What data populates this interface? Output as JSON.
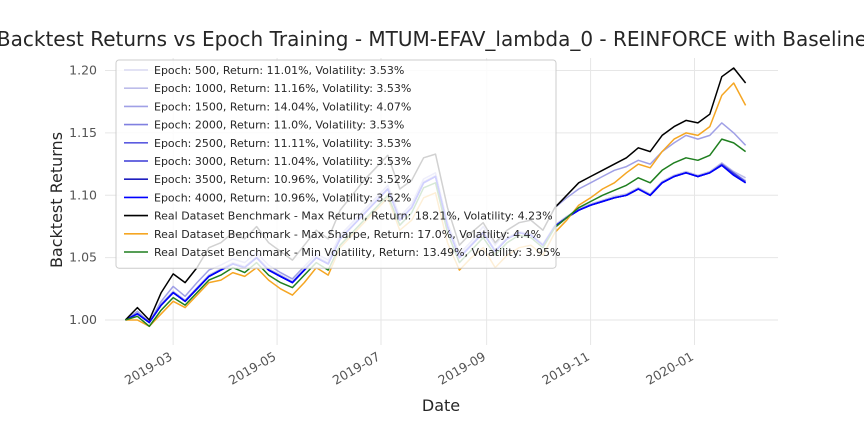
{
  "chart_data": {
    "type": "line",
    "title": "Backtest Returns vs Epoch Training - MTUM-EFAV_lambda_0 - REINFORCE with Baseline",
    "xlabel": "Date",
    "ylabel": "Backtest Returns",
    "xlim": [
      "2019-01-20",
      "2020-02-19"
    ],
    "ylim": [
      0.98,
      1.21
    ],
    "x_ticks": [
      "2019-03",
      "2019-05",
      "2019-07",
      "2019-09",
      "2019-11",
      "2020-01"
    ],
    "y_ticks": [
      1.0,
      1.05,
      1.1,
      1.15,
      1.2
    ],
    "grid": true,
    "legend_position": "top-left",
    "x": [
      "2019-02-01",
      "2019-02-08",
      "2019-02-15",
      "2019-02-22",
      "2019-03-01",
      "2019-03-08",
      "2019-03-15",
      "2019-03-22",
      "2019-03-29",
      "2019-04-05",
      "2019-04-12",
      "2019-04-19",
      "2019-04-26",
      "2019-05-03",
      "2019-05-10",
      "2019-05-17",
      "2019-05-24",
      "2019-05-31",
      "2019-06-07",
      "2019-06-14",
      "2019-06-21",
      "2019-06-28",
      "2019-07-05",
      "2019-07-12",
      "2019-07-19",
      "2019-07-26",
      "2019-08-02",
      "2019-08-09",
      "2019-08-16",
      "2019-08-23",
      "2019-08-30",
      "2019-09-06",
      "2019-09-13",
      "2019-09-20",
      "2019-09-27",
      "2019-10-04",
      "2019-10-11",
      "2019-10-18",
      "2019-10-25",
      "2019-11-01",
      "2019-11-08",
      "2019-11-15",
      "2019-11-22",
      "2019-11-29",
      "2019-12-06",
      "2019-12-13",
      "2019-12-20",
      "2019-12-27",
      "2020-01-03",
      "2020-01-10",
      "2020-01-17",
      "2020-01-24",
      "2020-01-31"
    ],
    "series": [
      {
        "name": "Epoch: 500, Return: 11.01%, Volatility: 3.53%",
        "color": "#d9d9f2",
        "values": [
          1.0,
          1.005,
          0.998,
          1.012,
          1.022,
          1.015,
          1.025,
          1.035,
          1.04,
          1.045,
          1.042,
          1.05,
          1.04,
          1.035,
          1.03,
          1.04,
          1.05,
          1.045,
          1.065,
          1.075,
          1.085,
          1.095,
          1.105,
          1.08,
          1.09,
          1.11,
          1.115,
          1.075,
          1.05,
          1.06,
          1.07,
          1.055,
          1.065,
          1.07,
          1.068,
          1.06,
          1.075,
          1.082,
          1.088,
          1.092,
          1.095,
          1.098,
          1.1,
          1.105,
          1.1,
          1.11,
          1.115,
          1.118,
          1.115,
          1.118,
          1.125,
          1.118,
          1.112
        ]
      },
      {
        "name": "Epoch: 1000, Return: 11.16%, Volatility: 3.53%",
        "color": "#bdbdea",
        "values": [
          1.0,
          1.006,
          0.999,
          1.013,
          1.023,
          1.016,
          1.026,
          1.036,
          1.041,
          1.046,
          1.043,
          1.051,
          1.041,
          1.036,
          1.031,
          1.041,
          1.051,
          1.046,
          1.066,
          1.076,
          1.086,
          1.096,
          1.106,
          1.081,
          1.091,
          1.111,
          1.116,
          1.076,
          1.051,
          1.061,
          1.071,
          1.056,
          1.066,
          1.071,
          1.069,
          1.061,
          1.076,
          1.083,
          1.089,
          1.093,
          1.096,
          1.099,
          1.101,
          1.106,
          1.101,
          1.111,
          1.116,
          1.119,
          1.116,
          1.119,
          1.126,
          1.119,
          1.114
        ]
      },
      {
        "name": "Epoch: 1500, Return: 14.04%, Volatility: 4.07%",
        "color": "#a0a0e6",
        "values": [
          1.0,
          1.007,
          0.998,
          1.015,
          1.027,
          1.019,
          1.03,
          1.04,
          1.044,
          1.049,
          1.046,
          1.054,
          1.044,
          1.038,
          1.033,
          1.043,
          1.053,
          1.048,
          1.068,
          1.078,
          1.088,
          1.098,
          1.108,
          1.083,
          1.093,
          1.113,
          1.118,
          1.078,
          1.053,
          1.063,
          1.075,
          1.06,
          1.072,
          1.078,
          1.08,
          1.072,
          1.09,
          1.098,
          1.105,
          1.11,
          1.115,
          1.12,
          1.123,
          1.128,
          1.125,
          1.135,
          1.142,
          1.148,
          1.145,
          1.148,
          1.158,
          1.15,
          1.14
        ]
      },
      {
        "name": "Epoch: 2000, Return: 11.0%, Volatility: 3.53%",
        "color": "#8080e0",
        "values": [
          1.0,
          1.005,
          0.998,
          1.012,
          1.022,
          1.015,
          1.025,
          1.035,
          1.04,
          1.045,
          1.042,
          1.05,
          1.04,
          1.035,
          1.03,
          1.04,
          1.05,
          1.045,
          1.065,
          1.075,
          1.085,
          1.095,
          1.105,
          1.08,
          1.09,
          1.11,
          1.115,
          1.075,
          1.05,
          1.06,
          1.07,
          1.055,
          1.065,
          1.07,
          1.068,
          1.06,
          1.075,
          1.082,
          1.088,
          1.092,
          1.095,
          1.098,
          1.1,
          1.105,
          1.1,
          1.11,
          1.115,
          1.118,
          1.115,
          1.118,
          1.124,
          1.117,
          1.11
        ]
      },
      {
        "name": "Epoch: 2500, Return: 11.11%, Volatility: 3.53%",
        "color": "#5c5ce0",
        "values": [
          1.0,
          1.005,
          0.998,
          1.012,
          1.022,
          1.015,
          1.025,
          1.035,
          1.04,
          1.045,
          1.042,
          1.05,
          1.04,
          1.035,
          1.03,
          1.04,
          1.05,
          1.045,
          1.065,
          1.075,
          1.085,
          1.095,
          1.105,
          1.08,
          1.09,
          1.11,
          1.115,
          1.075,
          1.05,
          1.06,
          1.07,
          1.055,
          1.065,
          1.07,
          1.068,
          1.06,
          1.075,
          1.082,
          1.088,
          1.092,
          1.095,
          1.098,
          1.1,
          1.105,
          1.1,
          1.11,
          1.115,
          1.118,
          1.115,
          1.118,
          1.125,
          1.118,
          1.111
        ]
      },
      {
        "name": "Epoch: 3000, Return: 11.04%, Volatility: 3.53%",
        "color": "#3a3ad6",
        "values": [
          1.0,
          1.005,
          0.998,
          1.012,
          1.022,
          1.015,
          1.025,
          1.035,
          1.04,
          1.045,
          1.042,
          1.05,
          1.04,
          1.035,
          1.03,
          1.04,
          1.05,
          1.045,
          1.065,
          1.075,
          1.085,
          1.095,
          1.105,
          1.08,
          1.09,
          1.11,
          1.115,
          1.075,
          1.05,
          1.06,
          1.07,
          1.055,
          1.065,
          1.07,
          1.068,
          1.06,
          1.075,
          1.082,
          1.088,
          1.092,
          1.095,
          1.098,
          1.1,
          1.105,
          1.1,
          1.11,
          1.115,
          1.118,
          1.115,
          1.118,
          1.124,
          1.117,
          1.11
        ]
      },
      {
        "name": "Epoch: 3500, Return: 10.96%, Volatility: 3.52%",
        "color": "#1f1fbf",
        "values": [
          1.0,
          1.005,
          0.998,
          1.012,
          1.022,
          1.015,
          1.025,
          1.035,
          1.04,
          1.045,
          1.042,
          1.05,
          1.04,
          1.035,
          1.03,
          1.04,
          1.05,
          1.045,
          1.065,
          1.075,
          1.085,
          1.095,
          1.105,
          1.08,
          1.09,
          1.11,
          1.115,
          1.075,
          1.05,
          1.06,
          1.07,
          1.055,
          1.065,
          1.07,
          1.068,
          1.06,
          1.075,
          1.082,
          1.088,
          1.092,
          1.095,
          1.098,
          1.1,
          1.105,
          1.1,
          1.11,
          1.115,
          1.118,
          1.115,
          1.118,
          1.124,
          1.116,
          1.11
        ]
      },
      {
        "name": "Epoch: 4000, Return: 10.96%, Volatility: 3.52%",
        "color": "#0000ff",
        "values": [
          1.0,
          1.005,
          0.998,
          1.012,
          1.022,
          1.015,
          1.025,
          1.035,
          1.04,
          1.045,
          1.042,
          1.05,
          1.04,
          1.035,
          1.03,
          1.04,
          1.05,
          1.045,
          1.065,
          1.075,
          1.085,
          1.095,
          1.105,
          1.08,
          1.09,
          1.11,
          1.115,
          1.075,
          1.05,
          1.06,
          1.07,
          1.055,
          1.065,
          1.07,
          1.068,
          1.06,
          1.075,
          1.082,
          1.088,
          1.092,
          1.095,
          1.098,
          1.1,
          1.105,
          1.1,
          1.11,
          1.115,
          1.118,
          1.115,
          1.118,
          1.124,
          1.116,
          1.11
        ]
      },
      {
        "name": "Real Dataset Benchmark - Max Return, Return: 18.21%, Volatility: 4.23%",
        "color": "#000000",
        "values": [
          1.0,
          1.01,
          1.0,
          1.022,
          1.037,
          1.03,
          1.042,
          1.058,
          1.062,
          1.07,
          1.065,
          1.075,
          1.062,
          1.055,
          1.048,
          1.06,
          1.072,
          1.065,
          1.088,
          1.1,
          1.112,
          1.122,
          1.132,
          1.105,
          1.112,
          1.13,
          1.133,
          1.09,
          1.06,
          1.07,
          1.078,
          1.062,
          1.072,
          1.078,
          1.08,
          1.072,
          1.09,
          1.1,
          1.11,
          1.115,
          1.12,
          1.125,
          1.13,
          1.138,
          1.135,
          1.148,
          1.155,
          1.16,
          1.158,
          1.165,
          1.195,
          1.202,
          1.19
        ]
      },
      {
        "name": "Real Dataset Benchmark - Max Sharpe, Return: 17.0%, Volatility: 4.4%",
        "color": "#f5a623",
        "values": [
          1.0,
          1.0,
          0.995,
          1.005,
          1.015,
          1.01,
          1.02,
          1.03,
          1.032,
          1.038,
          1.035,
          1.042,
          1.032,
          1.025,
          1.02,
          1.03,
          1.042,
          1.036,
          1.058,
          1.068,
          1.078,
          1.088,
          1.098,
          1.072,
          1.08,
          1.098,
          1.102,
          1.062,
          1.04,
          1.05,
          1.058,
          1.042,
          1.052,
          1.058,
          1.06,
          1.052,
          1.07,
          1.08,
          1.092,
          1.098,
          1.105,
          1.11,
          1.118,
          1.125,
          1.122,
          1.135,
          1.145,
          1.15,
          1.148,
          1.155,
          1.18,
          1.19,
          1.172
        ]
      },
      {
        "name": "Real Dataset Benchmark - Min Volatility, Return: 13.49%, Volatility: 3.95%",
        "color": "#1f7f1f",
        "values": [
          1.0,
          1.003,
          0.995,
          1.008,
          1.018,
          1.012,
          1.022,
          1.032,
          1.036,
          1.042,
          1.038,
          1.046,
          1.036,
          1.03,
          1.026,
          1.036,
          1.046,
          1.04,
          1.06,
          1.07,
          1.08,
          1.09,
          1.1,
          1.076,
          1.086,
          1.106,
          1.11,
          1.07,
          1.046,
          1.056,
          1.066,
          1.052,
          1.062,
          1.068,
          1.066,
          1.058,
          1.074,
          1.082,
          1.09,
          1.095,
          1.1,
          1.104,
          1.108,
          1.114,
          1.11,
          1.12,
          1.126,
          1.13,
          1.128,
          1.132,
          1.145,
          1.142,
          1.135
        ]
      }
    ]
  }
}
